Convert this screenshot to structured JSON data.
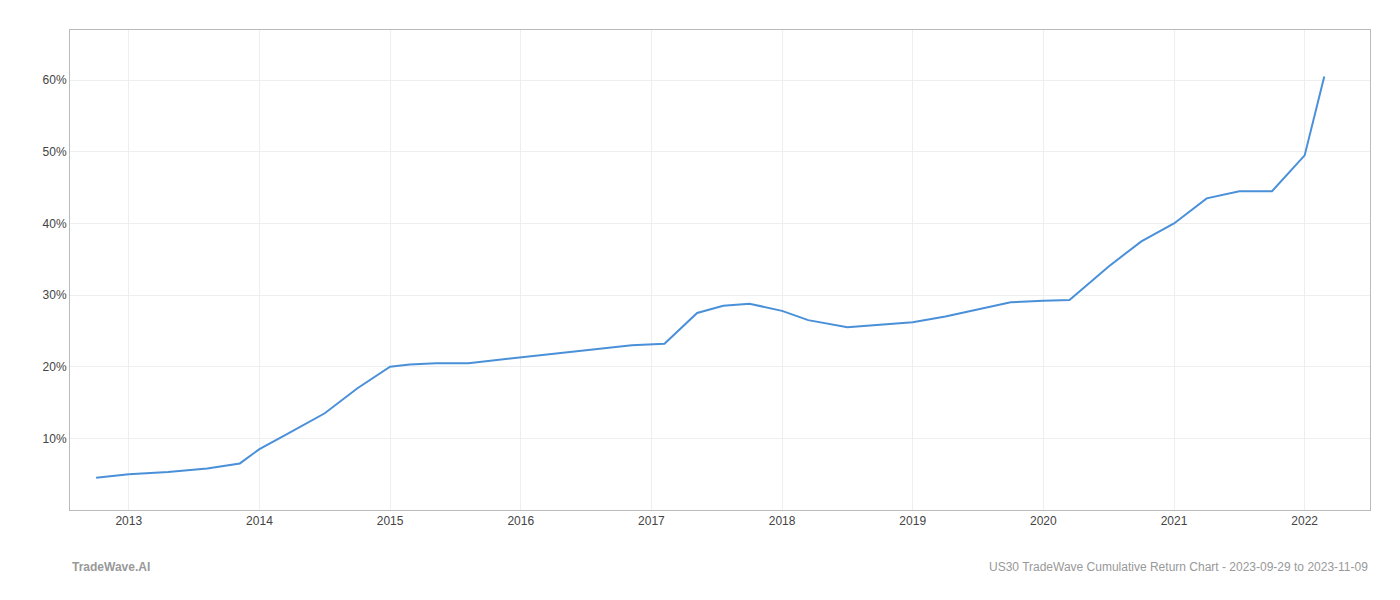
{
  "chart_data": {
    "type": "line",
    "x": [
      2012.75,
      2013.0,
      2013.3,
      2013.6,
      2013.85,
      2014.0,
      2014.2,
      2014.5,
      2014.75,
      2015.0,
      2015.15,
      2015.35,
      2015.6,
      2015.85,
      2016.1,
      2016.35,
      2016.6,
      2016.85,
      2017.1,
      2017.35,
      2017.55,
      2017.75,
      2018.0,
      2018.2,
      2018.5,
      2018.75,
      2019.0,
      2019.25,
      2019.5,
      2019.75,
      2020.0,
      2020.2,
      2020.5,
      2020.75,
      2021.0,
      2021.25,
      2021.5,
      2021.75,
      2022.0,
      2022.15
    ],
    "values": [
      4.5,
      5.0,
      5.3,
      5.8,
      6.5,
      8.5,
      10.5,
      13.5,
      17.0,
      20.0,
      20.3,
      20.5,
      20.5,
      21.0,
      21.5,
      22.0,
      22.5,
      23.0,
      23.2,
      27.5,
      28.5,
      28.8,
      27.8,
      26.5,
      25.5,
      25.8,
      26.2,
      27.0,
      28.0,
      29.0,
      29.2,
      29.3,
      34.0,
      37.5,
      40.0,
      43.5,
      44.5,
      44.5,
      49.5,
      60.5
    ],
    "color": "#4a90d9",
    "xlim": [
      2012.55,
      2022.5
    ],
    "xticks": [
      2013,
      2014,
      2015,
      2016,
      2017,
      2018,
      2019,
      2020,
      2021,
      2022
    ],
    "ylim": [
      0,
      67
    ],
    "yticks": [
      {
        "value": 10,
        "label": "10%"
      },
      {
        "value": 20,
        "label": "20%"
      },
      {
        "value": 30,
        "label": "30%"
      },
      {
        "value": 40,
        "label": "40%"
      },
      {
        "value": 50,
        "label": "50%"
      },
      {
        "value": 60,
        "label": "60%"
      }
    ],
    "grid": true,
    "annotations": [
      "TradeWave.AI",
      "US30 TradeWave Cumulative Return Chart - 2023-09-29 to 2023-11-09"
    ]
  }
}
